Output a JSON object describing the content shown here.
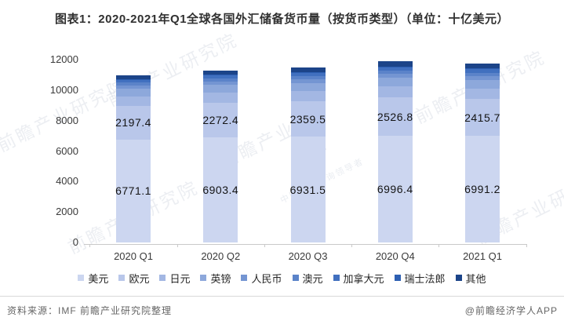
{
  "title": "图表1：2020-2021年Q1全球各国外汇储备货币量（按货币类型）（单位：十亿美元）",
  "chart_data": {
    "type": "bar",
    "stacked": true,
    "title": "图表1：2020-2021年Q1全球各国外汇储备货币量（按货币类型）（单位：十亿美元）",
    "unit": "十亿美元",
    "categories": [
      "2020 Q1",
      "2020 Q2",
      "2020 Q3",
      "2020 Q4",
      "2021 Q1"
    ],
    "series": [
      {
        "name": "美元",
        "color": "#ccd6f0",
        "labeled": true,
        "values": [
          6771.1,
          6903.4,
          6931.5,
          6996.4,
          6991.2
        ]
      },
      {
        "name": "欧元",
        "color": "#b9c7ea",
        "labeled": true,
        "values": [
          2197.4,
          2272.4,
          2359.5,
          2526.8,
          2415.7
        ]
      },
      {
        "name": "日元",
        "color": "#a3b7e3",
        "labeled": false,
        "values": [
          630,
          650,
          667,
          715,
          688
        ]
      },
      {
        "name": "英镑",
        "color": "#8da8db",
        "labeled": false,
        "values": [
          486,
          513,
          522,
          559,
          542
        ]
      },
      {
        "name": "人民币",
        "color": "#7495d2",
        "labeled": false,
        "values": [
          221,
          230,
          245,
          271,
          287
        ]
      },
      {
        "name": "澳元",
        "color": "#5b83c9",
        "labeled": false,
        "values": [
          180,
          193,
          203,
          217,
          217
        ]
      },
      {
        "name": "加拿大元",
        "color": "#4170bf",
        "labeled": false,
        "values": [
          206,
          217,
          229,
          246,
          246
        ]
      },
      {
        "name": "瑞士法郎",
        "color": "#2d5fb2",
        "labeled": false,
        "values": [
          17,
          17,
          18,
          21,
          21
        ]
      },
      {
        "name": "其他",
        "color": "#1c4489",
        "labeled": false,
        "values": [
          272,
          278,
          289,
          330,
          319
        ]
      }
    ],
    "y_ticks": [
      0,
      2000,
      4000,
      6000,
      8000,
      10000,
      12000
    ],
    "ylim": [
      0,
      12000
    ],
    "xlabel": "",
    "ylabel": "",
    "gridlines": false,
    "legend_position": "bottom",
    "axis_color": "#c9c9c9"
  },
  "footer": {
    "source": "资料来源：IMF 前瞻产业研究院整理",
    "credit": "@前瞻经济学人APP"
  },
  "watermark": {
    "text": "前瞻产业研究院",
    "brand": "前瞻产业",
    "tagline": "中国产业咨询领导者"
  }
}
